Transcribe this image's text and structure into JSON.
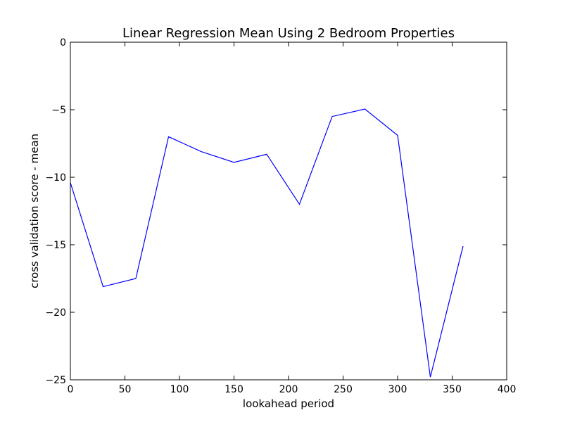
{
  "chart_data": {
    "type": "line",
    "title": "Linear Regression Mean Using 2 Bedroom Properties",
    "xlabel": "lookahead period",
    "ylabel": "cross validation score - mean",
    "xlim": [
      0,
      400
    ],
    "ylim": [
      -25,
      0
    ],
    "xticks": [
      0,
      50,
      100,
      150,
      200,
      250,
      300,
      350,
      400
    ],
    "yticks": [
      0,
      -5,
      -10,
      -15,
      -20,
      -25
    ],
    "grid": false,
    "series": [
      {
        "color": "#0000ff",
        "x": [
          0,
          30,
          60,
          90,
          120,
          150,
          180,
          210,
          240,
          270,
          300,
          330,
          360
        ],
        "y": [
          -10.4,
          -18.1,
          -17.5,
          -7.0,
          -8.1,
          -8.9,
          -8.3,
          -12.0,
          -5.5,
          -4.95,
          -6.9,
          -24.8,
          -15.1
        ]
      }
    ]
  }
}
